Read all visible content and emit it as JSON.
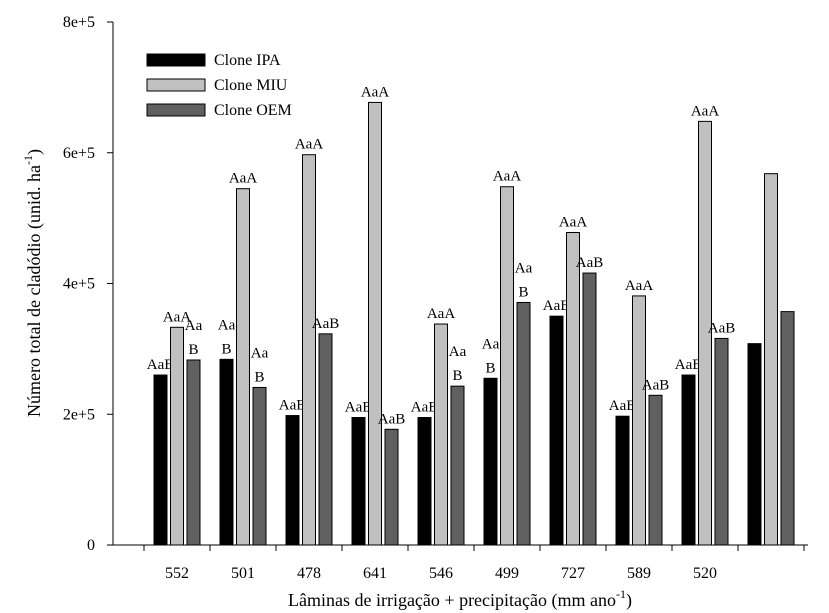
{
  "chart_data": {
    "type": "bar",
    "ylabel": [
      "Número total de cladódio (unid. ha",
      "-1",
      ")"
    ],
    "xlabel": [
      "Lâminas de irrigação + precipitação (mm ano",
      "-1",
      ")"
    ],
    "categories": [
      "552",
      "501",
      "478",
      "641",
      "546",
      "499",
      "727",
      "589",
      "520",
      null
    ],
    "series": [
      {
        "name": "Clone IPA",
        "color": "#000000",
        "values": [
          260000,
          284000,
          198000,
          195000,
          195000,
          255000,
          350000,
          197000,
          260000,
          308000
        ],
        "labels": [
          [
            "AaB"
          ],
          [
            "Aa",
            "B"
          ],
          [
            "AaB"
          ],
          [
            "AaB"
          ],
          [
            "AaB"
          ],
          [
            "Aa",
            "B"
          ],
          [
            "AaB"
          ],
          [
            "AaB"
          ],
          [
            "AaB"
          ],
          null
        ]
      },
      {
        "name": "Clone MIU",
        "color": "#c0c0c0",
        "values": [
          333000,
          545000,
          597000,
          677000,
          338000,
          548000,
          478000,
          381000,
          648000,
          568000
        ],
        "labels": [
          [
            "AaA"
          ],
          [
            "AaA"
          ],
          [
            "AaA"
          ],
          [
            "AaA"
          ],
          [
            "AaA"
          ],
          [
            "AaA"
          ],
          [
            "AaA"
          ],
          [
            "AaA"
          ],
          [
            "AaA"
          ],
          null
        ]
      },
      {
        "name": "Clone OEM",
        "color": "#606060",
        "values": [
          283000,
          241000,
          323000,
          177000,
          243000,
          371000,
          416000,
          229000,
          316000,
          357000
        ],
        "labels": [
          [
            "Aa",
            "B"
          ],
          [
            "Aa",
            "B"
          ],
          [
            "AaB"
          ],
          [
            "AaB"
          ],
          [
            "Aa",
            "B"
          ],
          [
            "Aa",
            "B"
          ],
          [
            "AaB"
          ],
          [
            "AaB"
          ],
          [
            "AaB"
          ],
          null
        ]
      }
    ],
    "ylim": [
      0,
      800000
    ],
    "yticks": [
      0,
      {
        "value": 200000,
        "label": "2e+5"
      },
      {
        "value": 400000,
        "label": "4e+5"
      },
      {
        "value": 600000,
        "label": "6e+5"
      },
      {
        "value": 800000,
        "label": "8e+5"
      }
    ],
    "grid": false,
    "legend": "top-left"
  }
}
